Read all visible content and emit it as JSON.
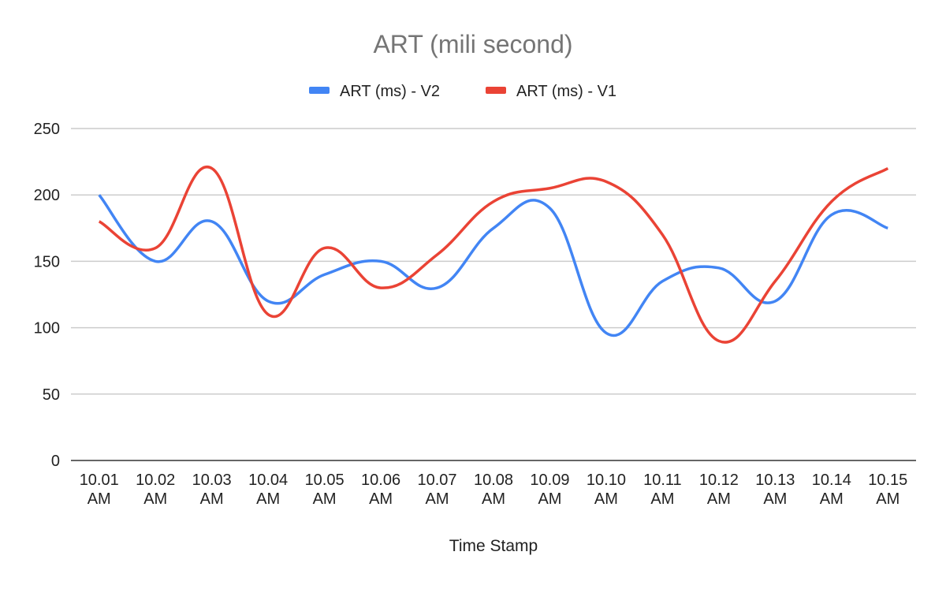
{
  "chart_data": {
    "type": "line",
    "title": "ART (mili second)",
    "xlabel": "Time Stamp",
    "ylabel": "",
    "ylim": [
      0,
      250
    ],
    "yticks": [
      0,
      50,
      100,
      150,
      200,
      250
    ],
    "grid": true,
    "smooth": true,
    "legend_position": "top",
    "categories": [
      "10.01 AM",
      "10.02 AM",
      "10.03 AM",
      "10.04 AM",
      "10.05 AM",
      "10.06 AM",
      "10.07 AM",
      "10.08 AM",
      "10.09 AM",
      "10.10 AM",
      "10.11 AM",
      "10.12 AM",
      "10.13 AM",
      "10.14 AM",
      "10.15 AM"
    ],
    "series": [
      {
        "name": "ART (ms) - V2",
        "color": "#4285f4",
        "values": [
          200,
          150,
          180,
          120,
          140,
          150,
          130,
          175,
          190,
          96,
          135,
          145,
          120,
          185,
          175
        ]
      },
      {
        "name": "ART (ms) - V1",
        "color": "#ea4335",
        "values": [
          180,
          160,
          220,
          110,
          160,
          130,
          155,
          195,
          205,
          210,
          170,
          90,
          135,
          195,
          220
        ]
      }
    ]
  }
}
